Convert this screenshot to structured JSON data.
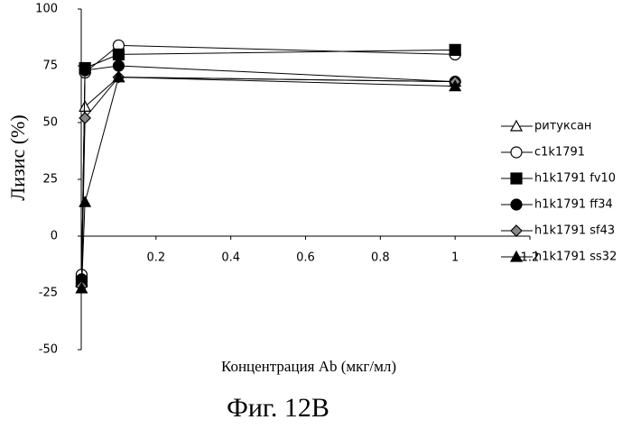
{
  "chart_data": {
    "type": "line",
    "y_label": "Лизис (%)",
    "x_label": "Концентрация Ab (мкг/мл)",
    "caption": "Фиг. 12B",
    "x": [
      0.001,
      0.01,
      0.1,
      1
    ],
    "xlim": [
      0,
      1.2
    ],
    "xticks": [
      0.2,
      0.4,
      0.6,
      0.8,
      1,
      1.2
    ],
    "ylim": [
      -50,
      100
    ],
    "yticks": [
      -50,
      -25,
      0,
      25,
      50,
      75,
      100
    ],
    "series": [
      {
        "name": "ритуксан",
        "color": "#000000",
        "marker": "triangle-open",
        "values": [
          -20,
          57,
          70,
          68
        ]
      },
      {
        "name": "c1k1791",
        "color": "#000000",
        "marker": "circle-open",
        "values": [
          -17,
          72,
          84,
          80
        ]
      },
      {
        "name": "h1k1791 fv10",
        "color": "#000000",
        "marker": "square",
        "values": [
          -20,
          74,
          80,
          82
        ]
      },
      {
        "name": "h1k1791 ff34",
        "color": "#000000",
        "marker": "circle",
        "values": [
          -19,
          73,
          75,
          68
        ]
      },
      {
        "name": "h1k1791 sf43",
        "color": "#000000",
        "marker": "diamond",
        "values": [
          -22,
          52,
          70,
          68
        ]
      },
      {
        "name": "h1k1791 ss32",
        "color": "#000000",
        "marker": "triangle",
        "values": [
          -23,
          15,
          70,
          66
        ]
      }
    ]
  }
}
